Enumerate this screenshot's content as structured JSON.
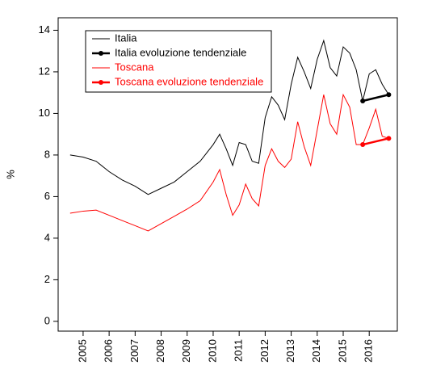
{
  "chart_data": {
    "type": "line",
    "ylabel": "%",
    "xlim": [
      2004.04,
      2017.08
    ],
    "xticks": [
      2005,
      2006,
      2007,
      2008,
      2009,
      2010,
      2011,
      2012,
      2013,
      2014,
      2015,
      2016
    ],
    "ylim": [
      -0.47,
      14.6
    ],
    "yticks": [
      0,
      2,
      4,
      6,
      8,
      10,
      12,
      14
    ],
    "legend": "top-left",
    "series": [
      {
        "name": "Italia",
        "color": "#000000",
        "line_width": 1,
        "marker": false,
        "x": [
          2004.5,
          2005.0,
          2005.5,
          2006.0,
          2006.5,
          2007.0,
          2007.5,
          2008.0,
          2008.5,
          2009.0,
          2009.5,
          2010.0,
          2010.25,
          2010.5,
          2010.75,
          2011.0,
          2011.25,
          2011.5,
          2011.75,
          2012.0,
          2012.25,
          2012.5,
          2012.75,
          2013.0,
          2013.25,
          2013.5,
          2013.75,
          2014.0,
          2014.25,
          2014.5,
          2014.75,
          2015.0,
          2015.25,
          2015.5,
          2015.75,
          2016.0,
          2016.25,
          2016.5,
          2016.75
        ],
        "values": [
          8.0,
          7.9,
          7.7,
          7.2,
          6.8,
          6.5,
          6.1,
          6.4,
          6.7,
          7.2,
          7.7,
          8.5,
          9.0,
          8.3,
          7.5,
          8.6,
          8.5,
          7.7,
          7.6,
          9.8,
          10.8,
          10.4,
          9.7,
          11.4,
          12.7,
          12.0,
          11.2,
          12.6,
          13.5,
          12.2,
          11.8,
          13.2,
          12.9,
          12.1,
          10.6,
          11.9,
          12.1,
          11.4,
          10.9
        ]
      },
      {
        "name": "Italia evoluzione tendenziale",
        "color": "#000000",
        "line_width": 2.5,
        "marker": true,
        "x": [
          2015.75,
          2016.75
        ],
        "values": [
          10.6,
          10.9
        ]
      },
      {
        "name": "Toscana",
        "color": "#ff0000",
        "line_width": 1,
        "marker": false,
        "x": [
          2004.5,
          2005.0,
          2005.5,
          2006.0,
          2006.5,
          2007.0,
          2007.5,
          2008.0,
          2008.5,
          2009.0,
          2009.5,
          2010.0,
          2010.25,
          2010.5,
          2010.75,
          2011.0,
          2011.25,
          2011.5,
          2011.75,
          2012.0,
          2012.25,
          2012.5,
          2012.75,
          2013.0,
          2013.25,
          2013.5,
          2013.75,
          2014.0,
          2014.25,
          2014.5,
          2014.75,
          2015.0,
          2015.25,
          2015.5,
          2015.75,
          2016.0,
          2016.25,
          2016.5,
          2016.75
        ],
        "values": [
          5.2,
          5.3,
          5.35,
          5.1,
          4.85,
          4.6,
          4.35,
          4.7,
          5.05,
          5.4,
          5.8,
          6.7,
          7.3,
          6.1,
          5.1,
          5.6,
          6.6,
          5.9,
          5.55,
          7.5,
          8.3,
          7.7,
          7.4,
          7.8,
          9.6,
          8.4,
          7.5,
          9.2,
          10.9,
          9.5,
          9.0,
          10.9,
          10.3,
          8.5,
          8.5,
          9.3,
          10.2,
          8.9,
          8.8
        ]
      },
      {
        "name": "Toscana evoluzione tendenziale",
        "color": "#ff0000",
        "line_width": 2.5,
        "marker": true,
        "x": [
          2015.75,
          2016.75
        ],
        "values": [
          8.5,
          8.8
        ]
      }
    ]
  }
}
